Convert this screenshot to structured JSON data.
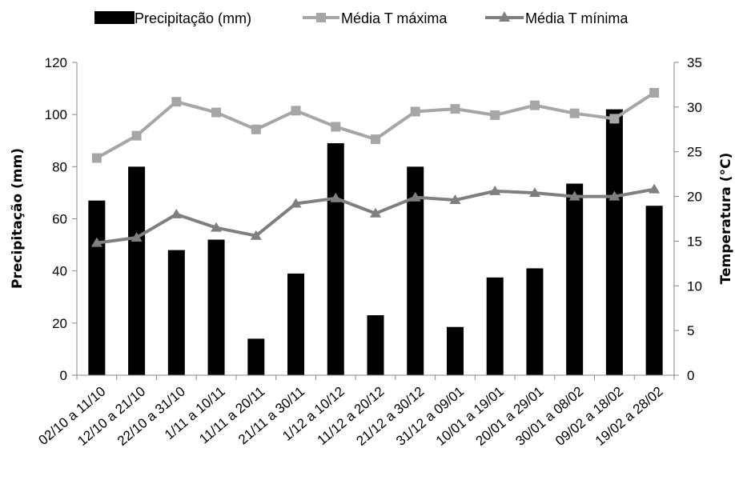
{
  "chart_data": {
    "type": "bar-line",
    "title": "",
    "categories": [
      "02/10 a 11/10",
      "12/10 a 21/10",
      "22/10 a 31/10",
      "1/11 a 10/11",
      "11/11 a 20/11",
      "21/11 a 30/11",
      "1/12 a 10/12",
      "11/12 a 20/12",
      "21/12 a 30/12",
      "31/12 a 09/01",
      "10/01 a 19/01",
      "20/01 a 29/01",
      "30/01 a 08/02",
      "09/02 a 18/02",
      "19/02 a 28/02"
    ],
    "series": [
      {
        "name": "Precipitação (mm)",
        "kind": "bar",
        "axis": "left",
        "color": "#000000",
        "values": [
          67,
          80,
          48,
          52,
          14,
          39,
          89,
          23,
          80,
          18.5,
          37.5,
          41,
          73.5,
          102,
          65
        ]
      },
      {
        "name": "Média T máxima",
        "kind": "line",
        "marker": "square",
        "axis": "right",
        "color": "#a6a6a6",
        "values": [
          24.3,
          26.8,
          30.6,
          29.4,
          27.5,
          29.6,
          27.8,
          26.4,
          29.5,
          29.8,
          29.1,
          30.2,
          29.3,
          28.7,
          31.6
        ]
      },
      {
        "name": "Média T mínima",
        "kind": "line",
        "marker": "triangle",
        "axis": "right",
        "color": "#7f7f7f",
        "values": [
          14.8,
          15.4,
          18.0,
          16.5,
          15.6,
          19.2,
          19.8,
          18.1,
          19.9,
          19.6,
          20.6,
          20.4,
          20.0,
          20.0,
          20.8
        ]
      }
    ],
    "ylabel_left": "Precipitação (mm)",
    "ylabel_right": "Temperatura (°C)",
    "ylim_left": [
      0,
      120
    ],
    "ylim_right": [
      0,
      35
    ],
    "yticks_left": [
      "0",
      "20",
      "40",
      "60",
      "80",
      "100",
      "120"
    ],
    "yticks_right": [
      "0",
      "5",
      "10",
      "15",
      "20",
      "25",
      "30",
      "35"
    ],
    "grid": false,
    "legend_position": "top"
  }
}
